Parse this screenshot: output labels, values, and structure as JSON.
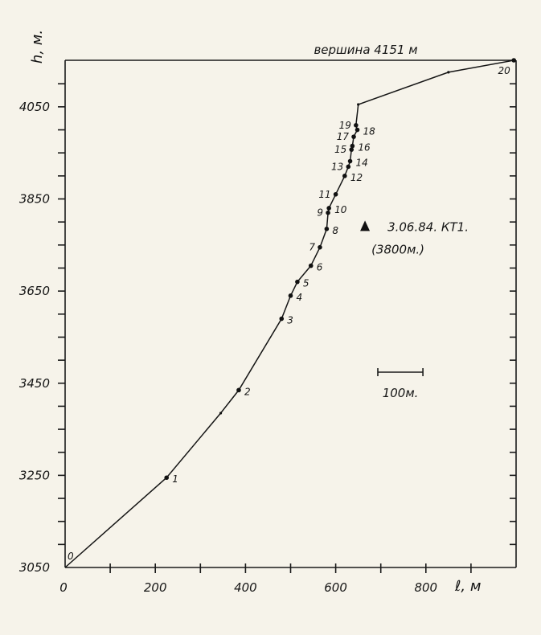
{
  "chart_data": {
    "type": "line",
    "title": "",
    "xlabel": "ℓ, м",
    "ylabel": "h, м.",
    "xlim": [
      0,
      1000
    ],
    "ylim": [
      3050,
      4151
    ],
    "grid": false,
    "x_ticks": [
      "0",
      "200",
      "400",
      "600",
      "800"
    ],
    "y_ticks": [
      "3050",
      "3250",
      "3450",
      "3650",
      "3850",
      "4050"
    ],
    "summit_label": "вершина 4151 м",
    "camp_label_line1": "3.06.84. КТ1.",
    "camp_label_line2": "(3800м.)",
    "camp_point": {
      "x": 665,
      "y": 3791
    },
    "scale_bar_label": "100м.",
    "scale_bar_length": 100,
    "series": [
      {
        "points": [
          {
            "label": "0",
            "x": 0,
            "y": 3050
          },
          {
            "label": "1",
            "x": 225,
            "y": 3245
          },
          {
            "label": "",
            "x": 345,
            "y": 3385
          },
          {
            "label": "2",
            "x": 385,
            "y": 3435
          },
          {
            "label": "3",
            "x": 480,
            "y": 3590
          },
          {
            "label": "4",
            "x": 500,
            "y": 3640
          },
          {
            "label": "5",
            "x": 515,
            "y": 3670
          },
          {
            "label": "6",
            "x": 545,
            "y": 3705
          },
          {
            "label": "7",
            "x": 565,
            "y": 3745
          },
          {
            "label": "8",
            "x": 580,
            "y": 3785
          },
          {
            "label": "9",
            "x": 583,
            "y": 3820
          },
          {
            "label": "10",
            "x": 585,
            "y": 3830
          },
          {
            "label": "11",
            "x": 600,
            "y": 3860
          },
          {
            "label": "12",
            "x": 620,
            "y": 3900
          },
          {
            "label": "13",
            "x": 628,
            "y": 3920
          },
          {
            "label": "14",
            "x": 632,
            "y": 3932
          },
          {
            "label": "15",
            "x": 635,
            "y": 3957
          },
          {
            "label": "16",
            "x": 637,
            "y": 3965
          },
          {
            "label": "17",
            "x": 640,
            "y": 3985
          },
          {
            "label": "18",
            "x": 648,
            "y": 4000
          },
          {
            "label": "19",
            "x": 645,
            "y": 4010
          },
          {
            "label": "",
            "x": 650,
            "y": 4055
          },
          {
            "label": "",
            "x": 850,
            "y": 4125
          },
          {
            "label": "20",
            "x": 995,
            "y": 4151
          }
        ]
      }
    ]
  }
}
